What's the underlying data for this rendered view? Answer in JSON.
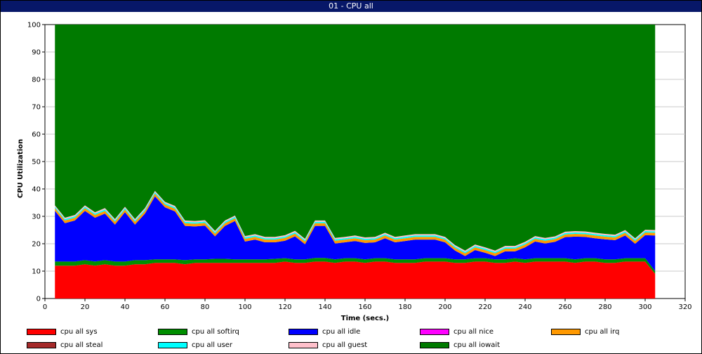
{
  "window": {
    "title": "01 - CPU all"
  },
  "chart_data": {
    "type": "area",
    "stacked": true,
    "xlabel": "Time (secs.)",
    "ylabel": "CPU Utilization",
    "xlim": [
      0,
      320
    ],
    "ylim": [
      0,
      100
    ],
    "x_ticks": [
      0,
      20,
      40,
      60,
      80,
      100,
      120,
      140,
      160,
      180,
      200,
      220,
      240,
      260,
      280,
      300,
      320
    ],
    "y_ticks": [
      0,
      10,
      20,
      30,
      40,
      50,
      60,
      70,
      80,
      90,
      100
    ],
    "grid": true,
    "legend_position": "bottom",
    "x": [
      5,
      10,
      15,
      20,
      25,
      30,
      35,
      40,
      45,
      50,
      55,
      60,
      65,
      70,
      75,
      80,
      85,
      90,
      95,
      100,
      105,
      110,
      115,
      120,
      125,
      130,
      135,
      140,
      145,
      150,
      155,
      160,
      165,
      170,
      175,
      180,
      185,
      190,
      195,
      200,
      205,
      210,
      215,
      220,
      225,
      230,
      235,
      240,
      245,
      250,
      255,
      260,
      265,
      270,
      275,
      280,
      285,
      290,
      295,
      300,
      305
    ],
    "series": [
      {
        "name": "cpu all sys",
        "color": "#ff0000",
        "values": [
          12,
          12,
          12,
          12.5,
          12,
          12.5,
          12,
          12,
          12.5,
          12.5,
          13,
          13,
          13,
          12.5,
          13,
          13,
          13,
          13,
          13,
          13,
          13,
          13,
          13,
          13.5,
          13,
          13,
          13.5,
          13.5,
          13,
          13.5,
          13.5,
          13,
          13.5,
          13.5,
          13,
          13,
          13,
          13.5,
          13.5,
          13.5,
          13,
          13,
          13.5,
          13.5,
          13,
          13,
          13.5,
          13,
          13.5,
          13.5,
          13.5,
          13.5,
          13,
          13.5,
          13.5,
          13,
          13,
          13.5,
          13.5,
          13.5,
          9
        ]
      },
      {
        "name": "cpu all softirq",
        "color": "#008f00",
        "values": [
          1.5,
          1.5,
          1.5,
          1.5,
          1.5,
          1.5,
          1.5,
          1.5,
          1.5,
          1.5,
          1.3,
          1.3,
          1.3,
          1.5,
          1.3,
          1.3,
          1.5,
          1.5,
          1.3,
          1.3,
          1.3,
          1.3,
          1.5,
          1.2,
          1.3,
          1.3,
          1.3,
          1.3,
          1.3,
          1.2,
          1.2,
          1.3,
          1.2,
          1.2,
          1.3,
          1.3,
          1.3,
          1.2,
          1.2,
          1.2,
          1.3,
          1.3,
          1.2,
          1.2,
          1.3,
          1.3,
          1.2,
          1.3,
          1.2,
          1.2,
          1.2,
          1.2,
          1.3,
          1.2,
          1.2,
          1.3,
          1.3,
          1.2,
          1.2,
          1.2,
          1
        ]
      },
      {
        "name": "cpu all idle",
        "color": "#0000ff",
        "values": [
          18.5,
          14,
          15,
          18,
          16,
          17,
          13.5,
          18,
          13,
          17,
          23,
          19,
          17.5,
          12.5,
          12,
          12.3,
          8.2,
          12,
          14,
          6.5,
          7.2,
          6.2,
          6,
          6.4,
          8.4,
          5.5,
          11.7,
          11.7,
          5.8,
          5.8,
          6.3,
          6,
          5.8,
          7.3,
          6.2,
          6.7,
          7.2,
          6.8,
          6.8,
          5.8,
          3.2,
          1.2,
          3,
          2,
          1.2,
          2.9,
          2.5,
          4.4,
          6.1,
          5.4,
          6,
          7.7,
          8.3,
          7.8,
          7.3,
          7.3,
          7,
          8.3,
          5.3,
          8.4,
          13
        ]
      },
      {
        "name": "cpu all nice",
        "color": "#ff00ff",
        "values": [
          0,
          0,
          0,
          0,
          0,
          0,
          0,
          0,
          0,
          0,
          0,
          0,
          0,
          0,
          0,
          0,
          0,
          0,
          0,
          0,
          0,
          0,
          0,
          0,
          0,
          0,
          0,
          0,
          0,
          0,
          0,
          0,
          0,
          0,
          0,
          0,
          0,
          0,
          0,
          0,
          0,
          0,
          0,
          0,
          0,
          0,
          0,
          0,
          0,
          0,
          0,
          0,
          0,
          0,
          0,
          0,
          0,
          0,
          0,
          0,
          0
        ]
      },
      {
        "name": "cpu all irq",
        "color": "#ff9900",
        "values": [
          1,
          1,
          1,
          1,
          1,
          1,
          1,
          1,
          1,
          1,
          1,
          1,
          1,
          1,
          1,
          1,
          1,
          1,
          1,
          1,
          1,
          1,
          1,
          1,
          1,
          1,
          1,
          1,
          1,
          1,
          1,
          1,
          1,
          1,
          1,
          1,
          1,
          1,
          1,
          1,
          1,
          1,
          1,
          1,
          1,
          1,
          1,
          1,
          1,
          1,
          1,
          1,
          1,
          1,
          1,
          1,
          1,
          1,
          1,
          1,
          1
        ]
      },
      {
        "name": "cpu all steal",
        "color": "#a52a2a",
        "values": [
          0,
          0,
          0,
          0,
          0,
          0,
          0,
          0,
          0,
          0,
          0,
          0,
          0,
          0,
          0,
          0,
          0,
          0,
          0,
          0,
          0,
          0,
          0,
          0,
          0,
          0,
          0,
          0,
          0,
          0,
          0,
          0,
          0,
          0,
          0,
          0,
          0,
          0,
          0,
          0,
          0,
          0,
          0,
          0,
          0,
          0,
          0,
          0,
          0,
          0,
          0,
          0,
          0,
          0,
          0,
          0,
          0,
          0,
          0,
          0,
          0
        ]
      },
      {
        "name": "cpu all user",
        "color": "#00ffff",
        "values": [
          0.5,
          0.5,
          0.5,
          0.5,
          0.5,
          0.5,
          0.5,
          0.5,
          0.5,
          0.5,
          0.5,
          0.5,
          0.5,
          0.5,
          0.5,
          0.5,
          0.5,
          0.5,
          0.5,
          0.5,
          0.5,
          0.5,
          0.5,
          0.5,
          0.5,
          0.5,
          0.5,
          0.5,
          0.5,
          0.5,
          0.5,
          0.5,
          0.5,
          0.5,
          0.5,
          0.5,
          0.5,
          0.5,
          0.5,
          0.5,
          0.5,
          0.5,
          0.5,
          0.5,
          0.5,
          0.5,
          0.5,
          0.5,
          0.5,
          0.5,
          0.5,
          0.5,
          0.5,
          0.5,
          0.5,
          0.5,
          0.5,
          0.5,
          0.5,
          0.5,
          0.5
        ]
      },
      {
        "name": "cpu all guest",
        "color": "#ffc0cb",
        "values": [
          0.5,
          0.5,
          0.5,
          0.5,
          0.5,
          0.5,
          0.5,
          0.5,
          0.5,
          0.5,
          0.5,
          0.5,
          0.5,
          0.5,
          0.5,
          0.5,
          0.5,
          0.5,
          0.5,
          0.5,
          0.5,
          0.5,
          0.5,
          0.5,
          0.5,
          0.5,
          0.5,
          0.5,
          0.5,
          0.5,
          0.5,
          0.5,
          0.5,
          0.5,
          0.5,
          0.5,
          0.5,
          0.5,
          0.5,
          0.5,
          0.5,
          0.5,
          0.5,
          0.5,
          0.5,
          0.5,
          0.5,
          0.5,
          0.5,
          0.5,
          0.5,
          0.5,
          0.5,
          0.5,
          0.5,
          0.5,
          0.5,
          0.5,
          0.5,
          0.5,
          0.5
        ]
      },
      {
        "name": "cpu all iowait",
        "color": "#007a00",
        "values": [
          66,
          70.5,
          69.5,
          66,
          68.5,
          67,
          71,
          66.5,
          71.5,
          67,
          60.7,
          64.7,
          66.7,
          71.5,
          71.7,
          71.4,
          75.3,
          71.5,
          69.7,
          77.2,
          76.5,
          77.5,
          77.5,
          77.4,
          75.8,
          78.7,
          72,
          72,
          77.9,
          78,
          77.5,
          78.2,
          78,
          76.5,
          77.5,
          77,
          76.5,
          77,
          77,
          78,
          80.5,
          82.5,
          80.8,
          81.8,
          83,
          81.3,
          81.3,
          79.8,
          77.7,
          78.4,
          77.8,
          76.1,
          75.9,
          76,
          76.5,
          76.9,
          77.2,
          75.5,
          78.5,
          75.4,
          75.5
        ]
      }
    ]
  }
}
